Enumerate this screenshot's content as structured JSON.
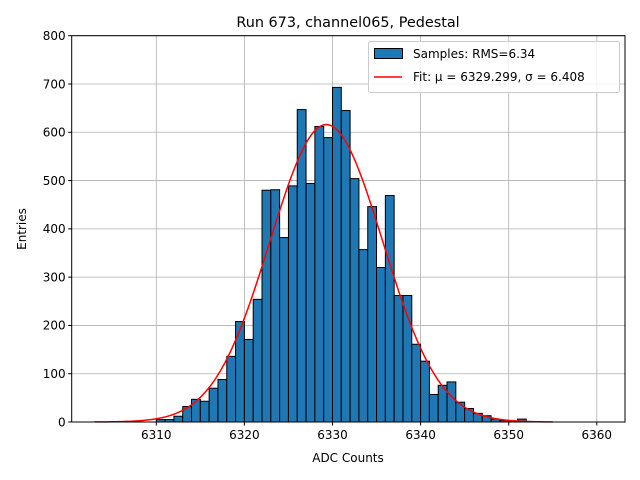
{
  "chart_data": {
    "type": "bar",
    "title": "Run 673, channel065, Pedestal",
    "xlabel": "ADC Counts",
    "ylabel": "Entries",
    "xlim": [
      6300.4,
      6363.2
    ],
    "ylim": [
      0,
      800
    ],
    "grid": true,
    "legend_position": "top-right",
    "x_ticks": [
      6310,
      6320,
      6330,
      6340,
      6350,
      6360
    ],
    "y_ticks": [
      0,
      100,
      200,
      300,
      400,
      500,
      600,
      700,
      800
    ],
    "bin_width": 1,
    "bins": [
      6310,
      6311,
      6312,
      6313,
      6314,
      6315,
      6316,
      6317,
      6318,
      6319,
      6320,
      6321,
      6322,
      6323,
      6324,
      6325,
      6326,
      6327,
      6328,
      6329,
      6330,
      6331,
      6332,
      6333,
      6334,
      6335,
      6336,
      6337,
      6338,
      6339,
      6340,
      6341,
      6342,
      6343,
      6344,
      6345,
      6346,
      6347,
      6348,
      6349,
      6350,
      6351
    ],
    "series": [
      {
        "name": "Samples: RMS=6.34",
        "kind": "histogram",
        "color": "#1f77b4",
        "values": [
          5,
          5,
          12,
          32,
          47,
          43,
          70,
          88,
          136,
          208,
          171,
          254,
          480,
          481,
          382,
          489,
          647,
          494,
          612,
          589,
          693,
          645,
          504,
          357,
          446,
          320,
          469,
          262,
          262,
          161,
          126,
          57,
          76,
          83,
          41,
          28,
          18,
          13,
          6,
          3,
          2,
          6
        ]
      },
      {
        "name": "Fit: μ = 6329.299, σ = 6.408",
        "kind": "gaussian-fit",
        "color": "#ff0000",
        "mu": 6329.299,
        "sigma": 6.408,
        "peak": 616,
        "x_range": [
          6303.0,
          6355.0
        ]
      }
    ]
  }
}
